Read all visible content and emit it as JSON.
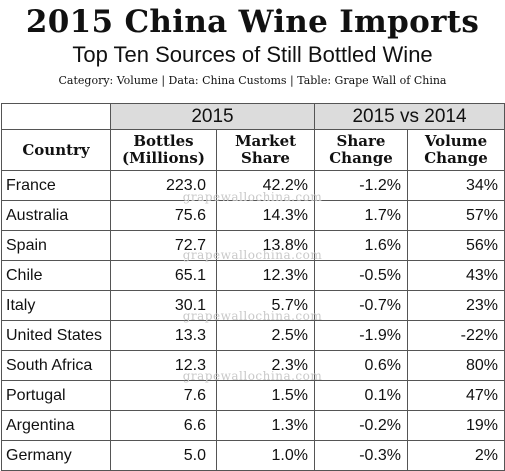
{
  "header": {
    "title": "2015 China Wine Imports",
    "subtitle": "Top Ten Sources of Still Bottled Wine",
    "caption": "Category: Volume | Data: China Customs | Table: Grape Wall of China"
  },
  "table": {
    "group_2015": "2015",
    "group_vs": "2015 vs 2014",
    "col_country": "Country",
    "col_bottles": "Bottles\n(Millions)",
    "col_share": "Market\nShare",
    "col_share_change": "Share\nChange",
    "col_volume_change": "Volume\nChange"
  },
  "watermark": "grapewallochina.com",
  "chart_data": {
    "type": "table",
    "title": "2015 China Wine Imports",
    "subtitle": "Top Ten Sources of Still Bottled Wine",
    "column_groups": [
      {
        "label": "2015",
        "columns": [
          "Bottles (Millions)",
          "Market Share"
        ]
      },
      {
        "label": "2015 vs 2014",
        "columns": [
          "Share Change",
          "Volume Change"
        ]
      }
    ],
    "columns": [
      "Country",
      "Bottles (Millions)",
      "Market Share",
      "Share Change",
      "Volume Change"
    ],
    "rows": [
      {
        "country": "France",
        "bottles": "223.0",
        "share": "42.2%",
        "share_change": "-1.2%",
        "volume_change": "34%"
      },
      {
        "country": "Australia",
        "bottles": "75.6",
        "share": "14.3%",
        "share_change": "1.7%",
        "volume_change": "57%"
      },
      {
        "country": "Spain",
        "bottles": "72.7",
        "share": "13.8%",
        "share_change": "1.6%",
        "volume_change": "56%"
      },
      {
        "country": "Chile",
        "bottles": "65.1",
        "share": "12.3%",
        "share_change": "-0.5%",
        "volume_change": "43%"
      },
      {
        "country": "Italy",
        "bottles": "30.1",
        "share": "5.7%",
        "share_change": "-0.7%",
        "volume_change": "23%"
      },
      {
        "country": "United States",
        "bottles": "13.3",
        "share": "2.5%",
        "share_change": "-1.9%",
        "volume_change": "-22%"
      },
      {
        "country": "South Africa",
        "bottles": "12.3",
        "share": "2.3%",
        "share_change": "0.6%",
        "volume_change": "80%"
      },
      {
        "country": "Portugal",
        "bottles": "7.6",
        "share": "1.5%",
        "share_change": "0.1%",
        "volume_change": "47%"
      },
      {
        "country": "Argentina",
        "bottles": "6.6",
        "share": "1.3%",
        "share_change": "-0.2%",
        "volume_change": "19%"
      },
      {
        "country": "Germany",
        "bottles": "5.0",
        "share": "1.0%",
        "share_change": "-0.3%",
        "volume_change": "2%"
      }
    ]
  }
}
